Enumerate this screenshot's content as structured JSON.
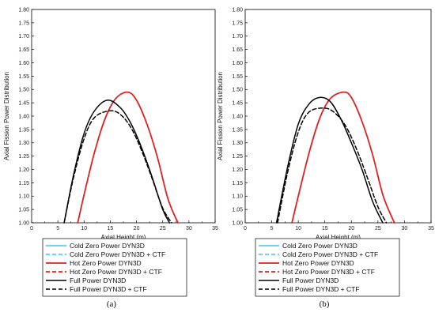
{
  "chart_data": [
    {
      "type": "line",
      "panel_label": "(a)",
      "xlabel": "Axial Height (m)",
      "ylabel": "Axial Fission Power Distribution",
      "xlim": [
        0,
        35
      ],
      "ylim": [
        1.0,
        1.8
      ],
      "x_ticks": [
        "0",
        "5",
        "10",
        "15",
        "20",
        "25",
        "30",
        "35"
      ],
      "y_ticks": [
        "1.00",
        "1.05",
        "1.10",
        "1.15",
        "1.20",
        "1.25",
        "1.30",
        "1.35",
        "1.40",
        "1.45",
        "1.50",
        "1.55",
        "1.60",
        "1.65",
        "1.70",
        "1.75",
        "1.80"
      ],
      "grid": false,
      "legend_position": "below",
      "series": [
        {
          "name": "Cold Zero Power DYN3D",
          "color": "#33ccff",
          "dash": "solid",
          "x": [],
          "y": []
        },
        {
          "name": "Cold Zero Power DYN3D + CTF",
          "color": "#33ccff",
          "dash": "dashed",
          "x": [],
          "y": []
        },
        {
          "name": "Hot Zero Power DYN3D",
          "color": "#e02020",
          "dash": "solid",
          "x": [
            8.8,
            10,
            12,
            14,
            16,
            18.3,
            20,
            22,
            24,
            26,
            27.9
          ],
          "y": [
            1.0,
            1.105,
            1.265,
            1.39,
            1.465,
            1.49,
            1.46,
            1.37,
            1.245,
            1.09,
            1.0
          ]
        },
        {
          "name": "Hot Zero Power DYN3D + CTF",
          "color": "#e02020",
          "dash": "dashed",
          "x": [],
          "y": []
        },
        {
          "name": "Full Power DYN3D",
          "color": "#000000",
          "dash": "solid",
          "x": [
            6.2,
            8,
            10,
            12,
            14.5,
            17,
            19,
            21,
            23,
            25,
            26.3
          ],
          "y": [
            1.0,
            1.18,
            1.335,
            1.42,
            1.46,
            1.43,
            1.37,
            1.28,
            1.17,
            1.05,
            1.0
          ]
        },
        {
          "name": "Full Power DYN3D + CTF",
          "color": "#000000",
          "dash": "dashed",
          "x": [
            6.2,
            8,
            10,
            12,
            15,
            17,
            19,
            21,
            23,
            25,
            26.7
          ],
          "y": [
            1.0,
            1.17,
            1.315,
            1.395,
            1.42,
            1.405,
            1.355,
            1.27,
            1.165,
            1.055,
            1.0
          ]
        }
      ]
    },
    {
      "type": "line",
      "panel_label": "(b)",
      "xlabel": "Axial Height (m)",
      "ylabel": "Axial Fission Power Distribution",
      "xlim": [
        0,
        35
      ],
      "ylim": [
        1.0,
        1.8
      ],
      "x_ticks": [
        "0",
        "5",
        "10",
        "15",
        "20",
        "25",
        "30",
        "35"
      ],
      "y_ticks": [
        "1.00",
        "1.05",
        "1.10",
        "1.15",
        "1.20",
        "1.25",
        "1.30",
        "1.35",
        "1.40",
        "1.45",
        "1.50",
        "1.55",
        "1.60",
        "1.65",
        "1.70",
        "1.75",
        "1.80"
      ],
      "grid": false,
      "legend_position": "below",
      "series": [
        {
          "name": "Cold Zero Power DYN3D",
          "color": "#33ccff",
          "dash": "solid",
          "x": [],
          "y": []
        },
        {
          "name": "Cold Zero Power DYN3D + CTF",
          "color": "#33ccff",
          "dash": "dashed",
          "x": [],
          "y": []
        },
        {
          "name": "Hot Zero Power DYN3D",
          "color": "#e02020",
          "dash": "solid",
          "x": [
            8.8,
            10,
            12,
            14,
            16,
            18.5,
            20,
            22,
            24,
            26,
            28.1
          ],
          "y": [
            1.0,
            1.1,
            1.26,
            1.39,
            1.465,
            1.49,
            1.47,
            1.38,
            1.255,
            1.1,
            1.0
          ]
        },
        {
          "name": "Hot Zero Power DYN3D + CTF",
          "color": "#e02020",
          "dash": "dashed",
          "x": [],
          "y": []
        },
        {
          "name": "Full Power DYN3D",
          "color": "#000000",
          "dash": "solid",
          "x": [
            5.9,
            8,
            10,
            12,
            14,
            16,
            18,
            20,
            22,
            24,
            25.9
          ],
          "y": [
            1.0,
            1.21,
            1.37,
            1.445,
            1.47,
            1.455,
            1.39,
            1.3,
            1.2,
            1.08,
            1.0
          ]
        },
        {
          "name": "Full Power DYN3D + CTF",
          "color": "#000000",
          "dash": "dashed",
          "x": [
            6.1,
            8,
            10,
            12,
            15,
            17,
            19,
            21,
            23,
            25,
            26.6
          ],
          "y": [
            1.0,
            1.19,
            1.34,
            1.415,
            1.43,
            1.41,
            1.36,
            1.275,
            1.17,
            1.06,
            1.0
          ]
        }
      ]
    }
  ]
}
